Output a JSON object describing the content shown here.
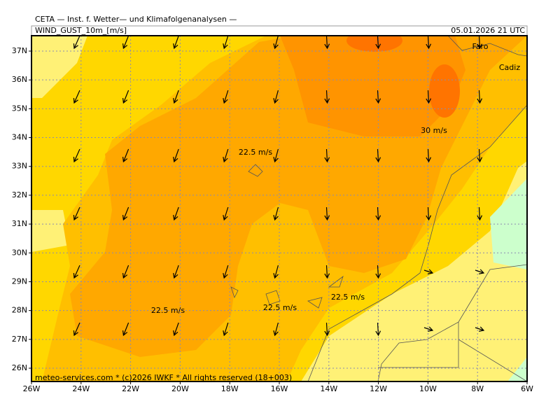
{
  "header": {
    "title": "CETA — Inst. f. Wetter— und Klimafolgenanalysen —",
    "variable": "WIND_GUST_10m_[m/s]",
    "valid_time": "05.01.2026 21 UTC"
  },
  "map": {
    "lat_labels": [
      "37N",
      "36N",
      "35N",
      "34N",
      "33N",
      "32N",
      "31N",
      "30N",
      "29N",
      "28N",
      "27N",
      "26N"
    ],
    "lon_labels": [
      "26W",
      "24W",
      "22W",
      "20W",
      "18W",
      "16W",
      "14W",
      "12W",
      "10W",
      "8W",
      "6W"
    ],
    "annotations": [
      "22.5 m/s",
      "22.5 m/s",
      "22.5 m/s",
      "22.5 m/s",
      "30 m/s"
    ],
    "places": [
      "Faro",
      "Cadiz"
    ]
  },
  "footer": {
    "credit": "meteo-services.com * (c)2026 IWKF * All rights reserved (18+003)"
  }
}
